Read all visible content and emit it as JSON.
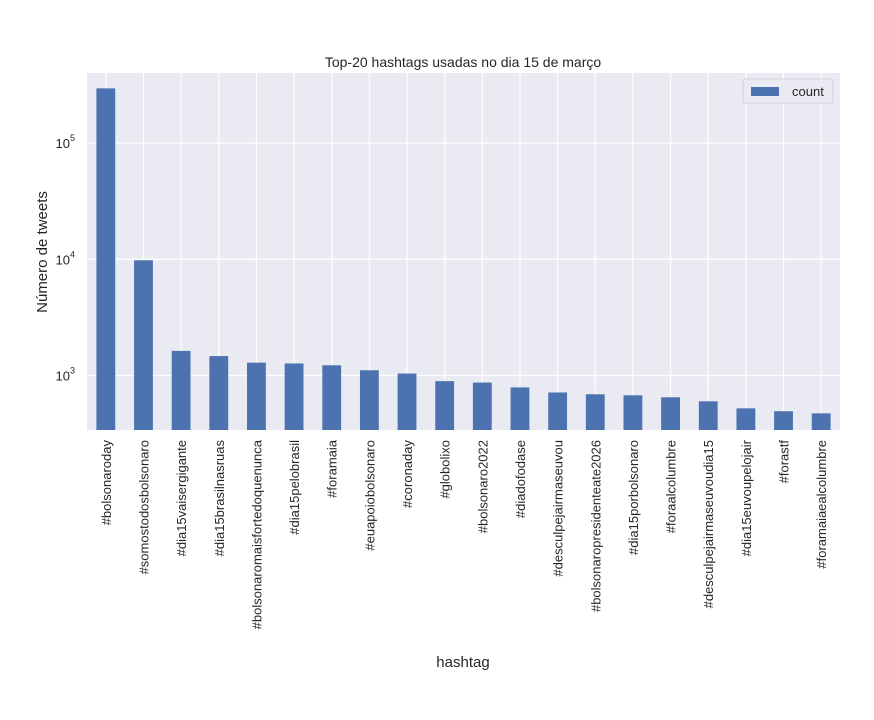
{
  "chart_data": {
    "type": "bar",
    "title": "Top-20 hashtags usadas no dia 15 de março",
    "xlabel": "hashtag",
    "ylabel": "Número de tweets",
    "yscale": "log",
    "ylim": [
      340,
      400000
    ],
    "yticks": [
      {
        "value": 1000,
        "base": "10",
        "exp": "3"
      },
      {
        "value": 10000,
        "base": "10",
        "exp": "4"
      },
      {
        "value": 100000,
        "base": "10",
        "exp": "5"
      }
    ],
    "grid": true,
    "legend_position": "top-right",
    "bar_color": "#4c72b0",
    "background_color": "#eaeaf2",
    "categories": [
      "#bolsonaroday",
      "#somostodosbolsonaro",
      "#dia15vaisergigante",
      "#dia15brasilnasruas",
      "#bolsonaromaisfortedoquenunca",
      "#dia15pelobrasil",
      "#foramaia",
      "#euapoiobolsonaro",
      "#coronaday",
      "#globolixo",
      "#bolsonaro2022",
      "#diadofodase",
      "#desculpejairmaseuvou",
      "#bolsonaropresidenteate2026",
      "#dia15porbolsonaro",
      "#foraalcolumbre",
      "#desculpejairmaseuvoudia15",
      "#dia15euvoupelojair",
      "#forastf",
      "#foramaiaealcolumbre"
    ],
    "series": [
      {
        "name": "count",
        "values": [
          295000,
          9800,
          1630,
          1470,
          1290,
          1270,
          1225,
          1110,
          1040,
          895,
          870,
          790,
          715,
          690,
          676,
          650,
          600,
          522,
          493,
          473
        ]
      }
    ]
  }
}
